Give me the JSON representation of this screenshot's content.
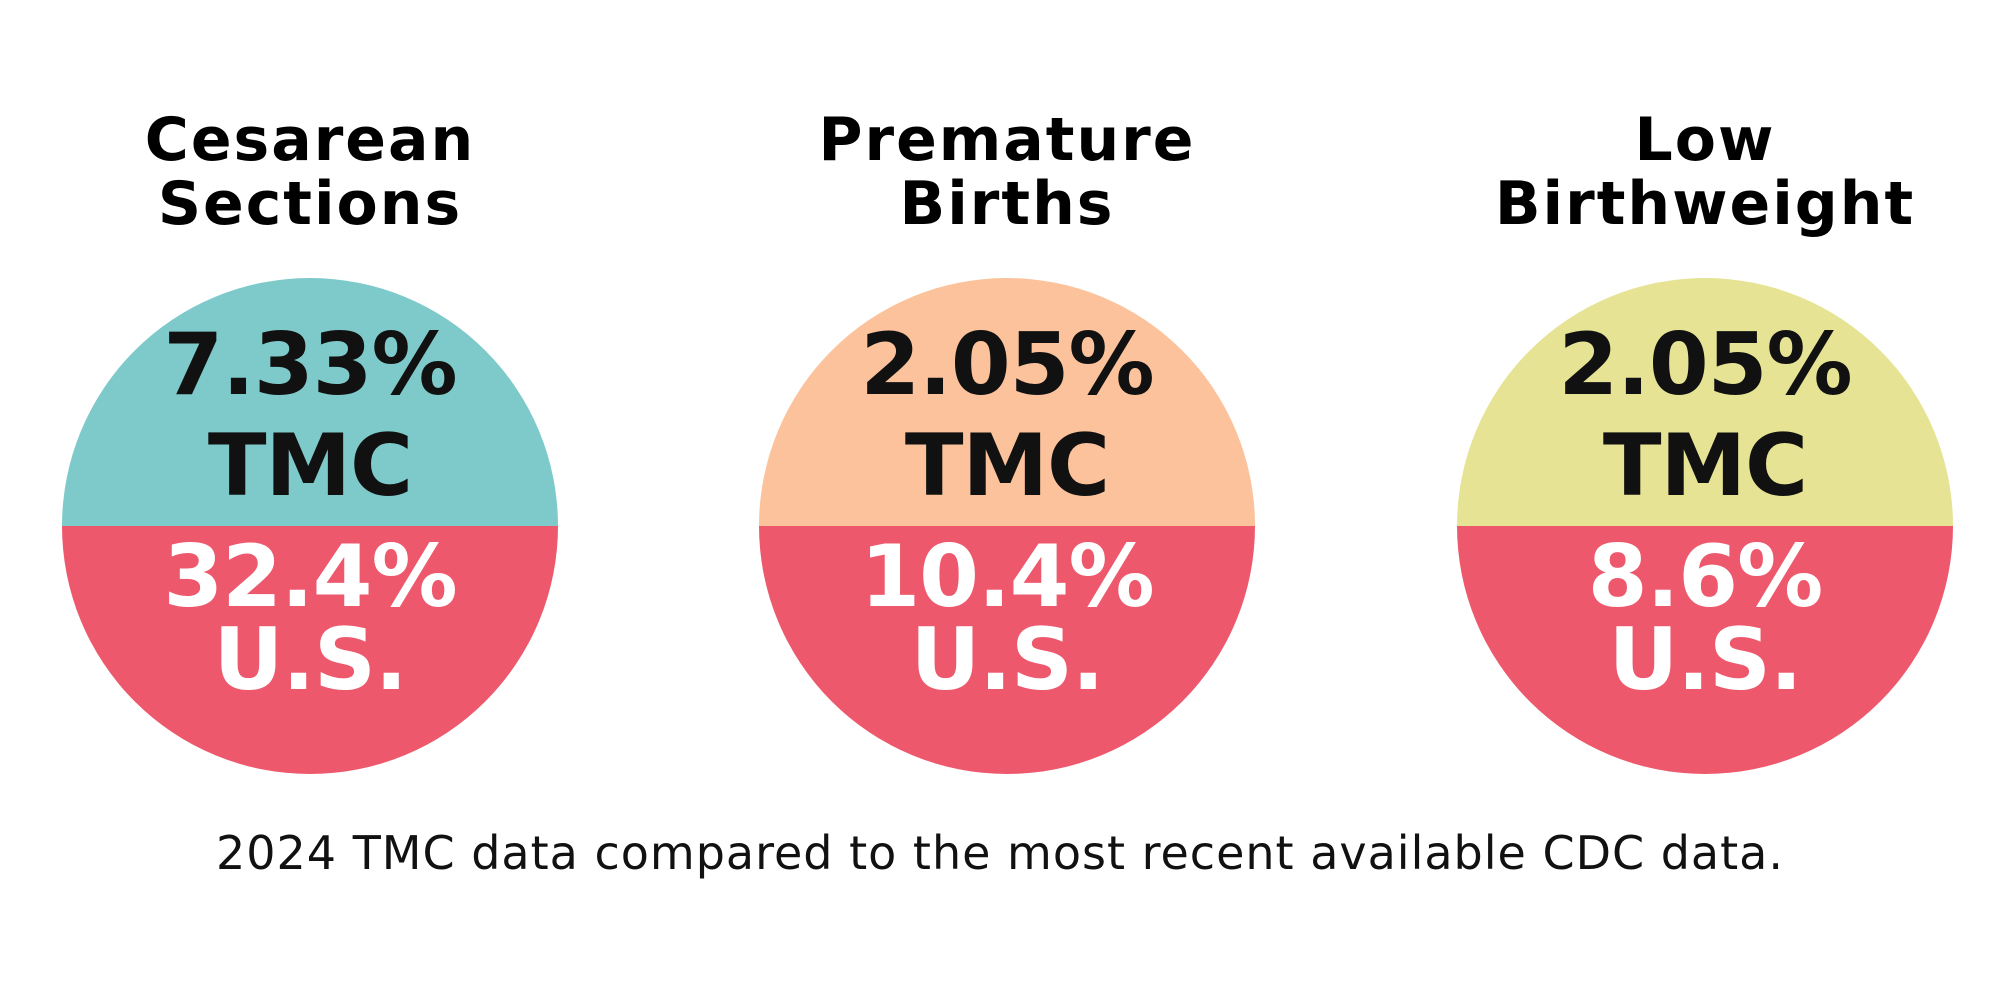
{
  "chart_data": [
    {
      "type": "pie",
      "title": "Cesarean Sections",
      "title_lines": [
        "Cesarean",
        "Sections"
      ],
      "top": {
        "value": "7.33%",
        "label": "TMC",
        "color": "#7ecacb"
      },
      "bottom": {
        "value": "32.4%",
        "label": "U.S.",
        "color": "#ee586c"
      }
    },
    {
      "type": "pie",
      "title": "Premature Births",
      "title_lines": [
        "Premature",
        "Births"
      ],
      "top": {
        "value": "2.05%",
        "label": "TMC",
        "color": "#fbc29b"
      },
      "bottom": {
        "value": "10.4%",
        "label": "U.S.",
        "color": "#ee586c"
      }
    },
    {
      "type": "pie",
      "title": "Low Birthweight",
      "title_lines": [
        "Low",
        "Birthweight"
      ],
      "top": {
        "value": "2.05%",
        "label": "TMC",
        "color": "#e6e494"
      },
      "bottom": {
        "value": "8.6%",
        "label": "U.S.",
        "color": "#ee586c"
      }
    }
  ],
  "footnote": "2024 TMC data compared to the most recent available CDC data."
}
